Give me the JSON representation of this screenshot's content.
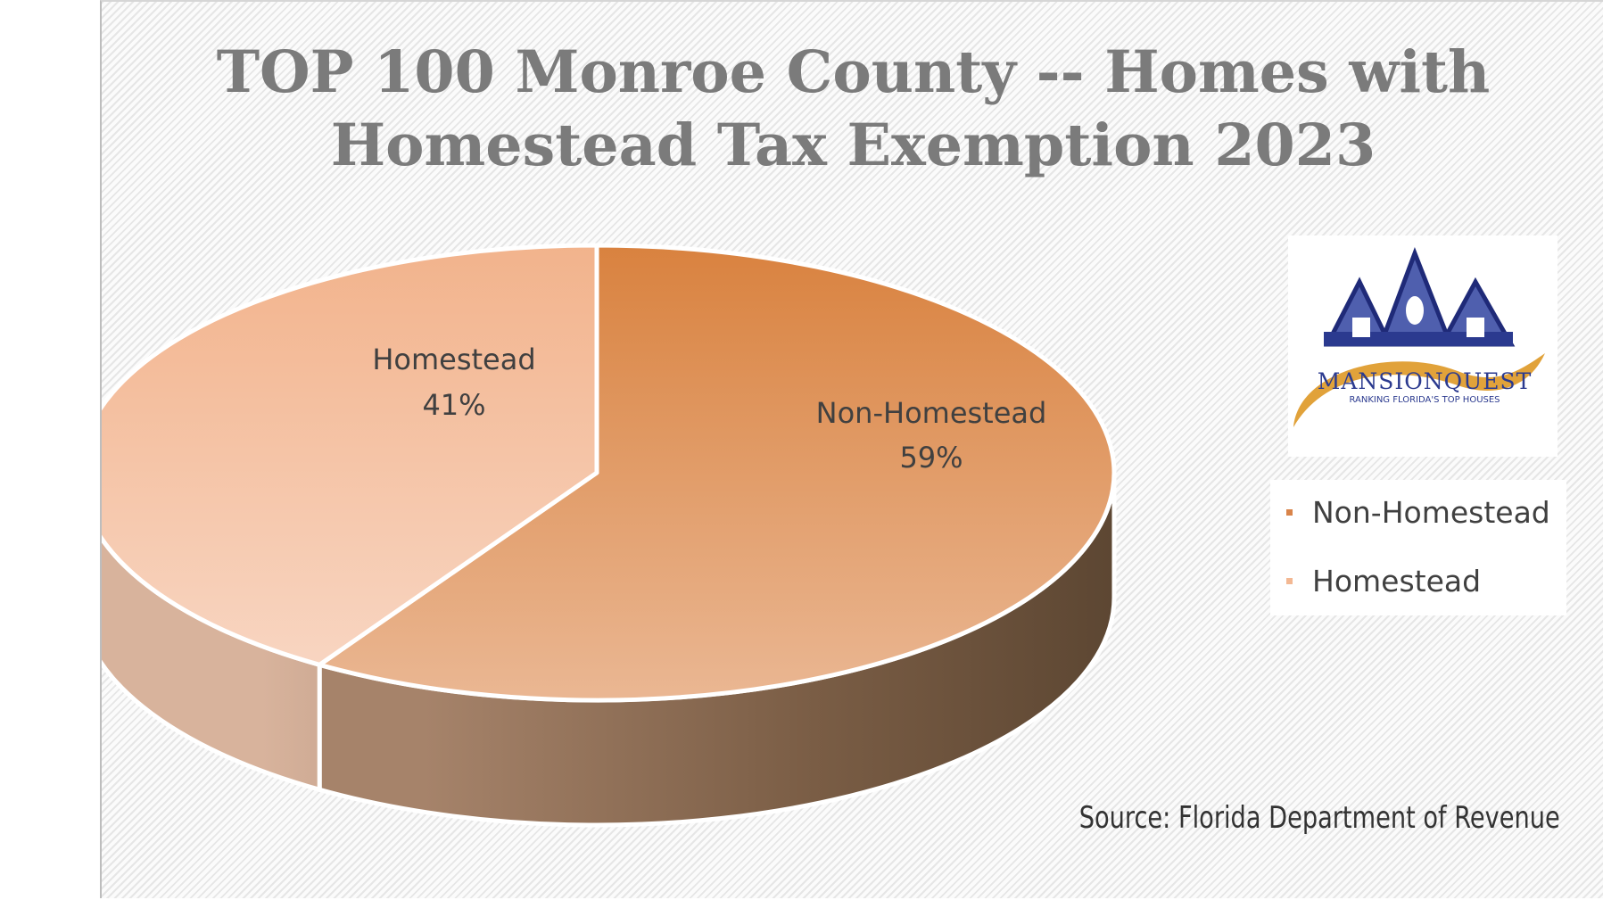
{
  "title_lines": [
    "TOP 100 Monroe County -- Homes with",
    "Homestead Tax Exemption 2023"
  ],
  "source": "Source: Florida Department of Revenue",
  "logo": {
    "brand": "MANSIONQUEST",
    "tagline": "RANKING FLORIDA'S TOP HOUSES"
  },
  "chart_data": {
    "type": "pie",
    "style": "3d",
    "title": "TOP 100 Monroe County -- Homes with Homestead Tax Exemption 2023",
    "slices": [
      {
        "name": "Non-Homestead",
        "value": 59,
        "label": "59%",
        "color": "#d9844a"
      },
      {
        "name": "Homestead",
        "value": 41,
        "label": "41%",
        "color": "#f3b893"
      }
    ],
    "legend": [
      "Non-Homestead",
      "Homestead"
    ],
    "legend_position": "right"
  },
  "colors": {
    "title": "#7b7b7b",
    "non_homestead_top": "#d9844a",
    "non_homestead_side": "#5e4631",
    "homestead_top": "#f3b893",
    "homestead_side": "#c9a58e",
    "logo_blue": "#2b3a8f",
    "logo_gold": "#e1a23a"
  }
}
